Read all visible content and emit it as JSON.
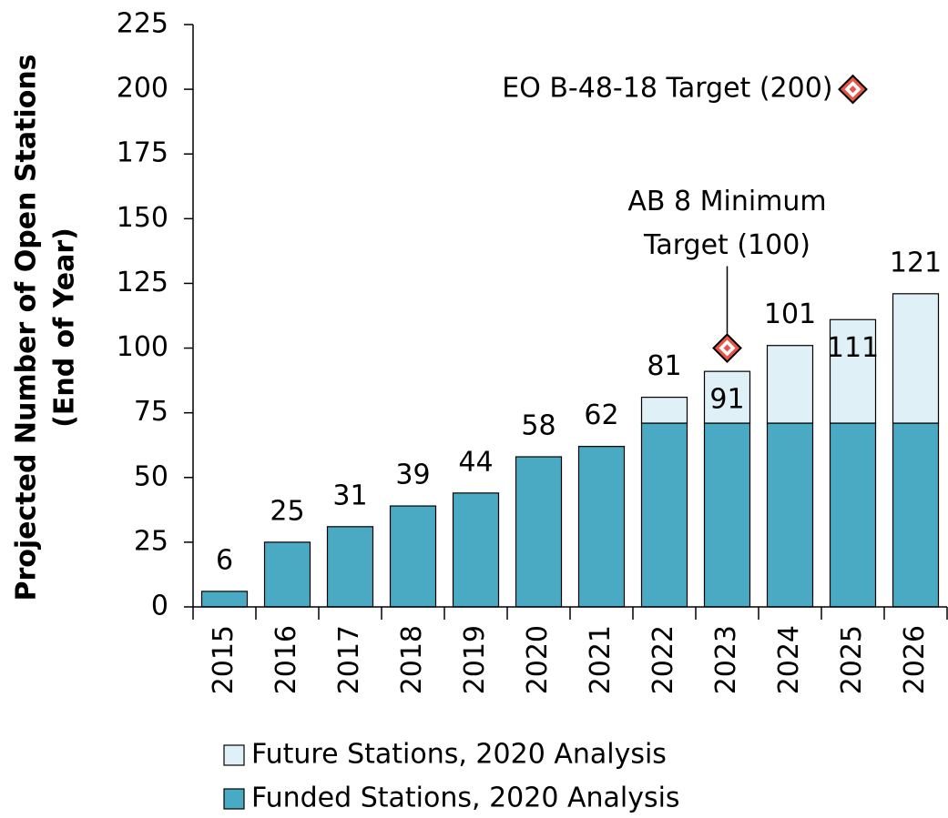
{
  "chart_data": {
    "type": "stacked_bar",
    "y_label": [
      "Projected Number of Open Stations",
      "(End of Year)"
    ],
    "categories": [
      "2015",
      "2016",
      "2017",
      "2018",
      "2019",
      "2020",
      "2021",
      "2022",
      "2023",
      "2024",
      "2025",
      "2026"
    ],
    "series": [
      {
        "name": "Funded Stations, 2020 Analysis",
        "color": "#4aaac4",
        "values": [
          6,
          25,
          31,
          39,
          44,
          58,
          62,
          71,
          71,
          71,
          71,
          71
        ]
      },
      {
        "name": "Future Stations, 2020 Analysis",
        "color": "#dff0f6",
        "values": [
          null,
          null,
          null,
          null,
          null,
          null,
          null,
          10,
          20,
          30,
          40,
          50
        ]
      }
    ],
    "totals": [
      6,
      25,
      31,
      39,
      44,
      58,
      62,
      81,
      91,
      101,
      111,
      121
    ],
    "targets": [
      {
        "lines": [
          "EO B-48-18 Target (200)"
        ],
        "category": "2025",
        "value": 200
      },
      {
        "lines": [
          "AB 8 Minimum",
          "Target (100)"
        ],
        "category": "2023",
        "value": 100
      }
    ],
    "ylim": [
      0,
      225
    ],
    "yticks": [
      0,
      25,
      50,
      75,
      100,
      125,
      150,
      175,
      200,
      225
    ],
    "grid": false
  }
}
